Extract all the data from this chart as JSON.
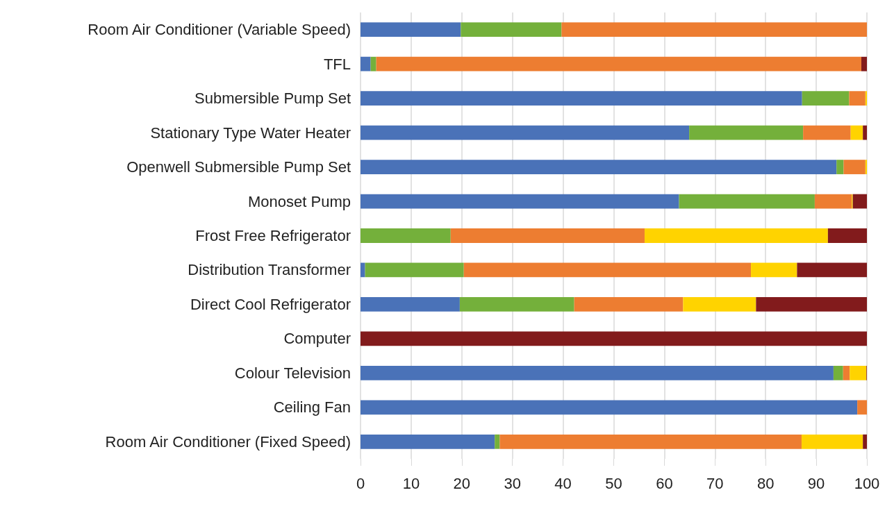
{
  "chart_data": {
    "type": "bar",
    "orientation": "horizontal",
    "stacked": true,
    "grid": "x",
    "categories": [
      "Room Air Conditioner (Variable Speed)",
      "TFL",
      "Submersible Pump Set",
      "Stationary Type Water Heater",
      "Openwell Submersible Pump Set",
      "Monoset Pump",
      "Frost Free Refrigerator",
      "Distribution Transformer",
      "Direct Cool Refrigerator",
      "Computer",
      "Colour Television",
      "Ceiling Fan",
      "Room Air Conditioner (Fixed Speed)"
    ],
    "series": [
      {
        "color": "#4a72b8",
        "values": [
          19.8,
          2.0,
          87.2,
          64.9,
          94.0,
          62.9,
          0,
          0.9,
          19.6,
          0,
          93.4,
          98.1,
          26.5
        ]
      },
      {
        "color": "#74b03b",
        "values": [
          19.9,
          1.1,
          9.3,
          22.5,
          1.4,
          26.8,
          17.8,
          19.5,
          22.6,
          0,
          1.9,
          0,
          1.0
        ]
      },
      {
        "color": "#ed7d31",
        "values": [
          60.3,
          95.8,
          3.2,
          9.4,
          4.3,
          7.3,
          38.3,
          56.7,
          21.5,
          0,
          1.3,
          1.9,
          59.6
        ]
      },
      {
        "color": "#ffd300",
        "values": [
          0,
          0,
          0.3,
          2.4,
          0.3,
          0.2,
          36.2,
          9.1,
          14.4,
          0,
          3.3,
          0,
          12.1
        ]
      },
      {
        "color": "#821b1c",
        "values": [
          0,
          1.1,
          0,
          0.8,
          0,
          2.8,
          7.7,
          13.8,
          21.9,
          100,
          0.1,
          0,
          0.8
        ]
      }
    ],
    "xlim": [
      0,
      100
    ],
    "xticks": [
      0,
      10,
      20,
      30,
      40,
      50,
      60,
      70,
      80,
      90,
      100
    ]
  }
}
